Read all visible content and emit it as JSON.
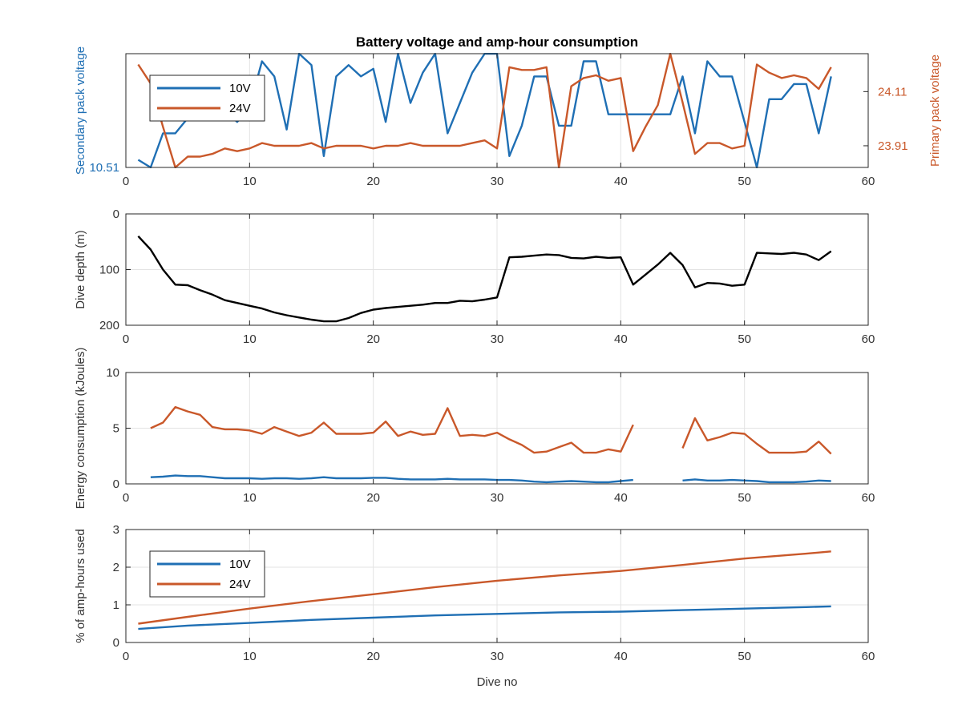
{
  "title": "Battery voltage and amp-hour consumption",
  "colors": {
    "blue": "#1f6fb4",
    "orange": "#c9582a",
    "black": "#000000",
    "grid": "#e3e3e3"
  },
  "chart_data": [
    {
      "type": "line",
      "title": "Battery voltage and amp-hour consumption",
      "xlabel": "",
      "ylabel_left": "Secondary pack voltage",
      "ylabel_right": "Primary pack voltage",
      "xlim": [
        0,
        60
      ],
      "xticks": [
        0,
        10,
        20,
        30,
        40,
        50,
        60
      ],
      "ylim_left": [
        10.51,
        10.54
      ],
      "yticks_left": [
        10.51
      ],
      "ylim_right": [
        23.83,
        24.25
      ],
      "yticks_right": [
        23.91,
        24.11
      ],
      "grid": true,
      "legend": {
        "placement": "top-left",
        "entries": [
          "10V",
          "24V"
        ]
      },
      "series": [
        {
          "name": "10V",
          "axis": "left",
          "color": "#1f6fb4",
          "x": [
            1,
            2,
            3,
            4,
            5,
            6,
            7,
            8,
            9,
            10,
            11,
            12,
            13,
            14,
            15,
            16,
            17,
            18,
            19,
            20,
            21,
            22,
            23,
            24,
            25,
            26,
            27,
            28,
            29,
            30,
            31,
            32,
            33,
            34,
            35,
            36,
            37,
            38,
            39,
            40,
            41,
            42,
            43,
            44,
            45,
            46,
            47,
            48,
            49,
            50,
            51,
            52,
            53,
            54,
            55,
            56,
            57
          ],
          "y": [
            10.512,
            10.51,
            10.519,
            10.519,
            10.523,
            10.524,
            10.524,
            10.525,
            10.522,
            10.526,
            10.538,
            10.534,
            10.52,
            10.54,
            10.537,
            10.513,
            10.534,
            10.537,
            10.534,
            10.536,
            10.522,
            10.54,
            10.527,
            10.535,
            10.54,
            10.519,
            10.527,
            10.535,
            10.54,
            10.54,
            10.513,
            10.521,
            10.534,
            10.534,
            10.521,
            10.521,
            10.538,
            10.538,
            10.524,
            10.524,
            10.524,
            10.524,
            10.524,
            10.524,
            10.534,
            10.519,
            10.538,
            10.534,
            10.534,
            10.522,
            10.51,
            10.528,
            10.528,
            10.532,
            10.532,
            10.519,
            10.534
          ]
        },
        {
          "name": "24V",
          "axis": "right",
          "color": "#c9582a",
          "x": [
            1,
            2,
            3,
            4,
            5,
            6,
            7,
            8,
            9,
            10,
            11,
            12,
            13,
            14,
            15,
            16,
            17,
            18,
            19,
            20,
            21,
            22,
            23,
            24,
            25,
            26,
            27,
            28,
            29,
            30,
            31,
            32,
            33,
            34,
            35,
            36,
            37,
            38,
            39,
            40,
            41,
            42,
            43,
            44,
            45,
            46,
            47,
            48,
            49,
            50,
            51,
            52,
            53,
            54,
            55,
            56,
            57
          ],
          "y": [
            24.21,
            24.14,
            23.98,
            23.83,
            23.87,
            23.87,
            23.88,
            23.9,
            23.89,
            23.9,
            23.92,
            23.91,
            23.91,
            23.91,
            23.92,
            23.9,
            23.91,
            23.91,
            23.91,
            23.9,
            23.91,
            23.91,
            23.92,
            23.91,
            23.91,
            23.91,
            23.91,
            23.92,
            23.93,
            23.9,
            24.2,
            24.19,
            24.19,
            24.2,
            23.83,
            24.13,
            24.16,
            24.17,
            24.15,
            24.16,
            23.89,
            23.98,
            24.06,
            24.25,
            24.07,
            23.88,
            23.92,
            23.92,
            23.9,
            23.91,
            24.21,
            24.18,
            24.16,
            24.17,
            24.16,
            24.12,
            24.2
          ]
        }
      ]
    },
    {
      "type": "line",
      "title": "",
      "xlabel": "",
      "ylabel": "Dive depth (m)",
      "xlim": [
        0,
        60
      ],
      "xticks": [
        0,
        10,
        20,
        30,
        40,
        50,
        60
      ],
      "ylim": [
        0,
        200
      ],
      "y_reversed": true,
      "yticks": [
        0,
        100,
        200
      ],
      "ytick_labels": [
        "0",
        "100",
        "200"
      ],
      "grid": true,
      "series": [
        {
          "color": "#000000",
          "x": [
            1,
            2,
            3,
            4,
            5,
            6,
            7,
            8,
            9,
            10,
            11,
            12,
            13,
            14,
            15,
            16,
            17,
            18,
            19,
            20,
            21,
            22,
            23,
            24,
            25,
            26,
            27,
            28,
            29,
            30,
            31,
            32,
            33,
            34,
            35,
            36,
            37,
            38,
            39,
            40,
            41,
            42,
            43,
            44,
            45,
            46,
            47,
            48,
            49,
            50,
            51,
            52,
            53,
            54,
            55,
            56,
            57
          ],
          "y": [
            40,
            64,
            100,
            127,
            128,
            137,
            145,
            155,
            160,
            165,
            170,
            177,
            182,
            186,
            190,
            193,
            193,
            187,
            178,
            172,
            169,
            167,
            165,
            163,
            160,
            160,
            156,
            157,
            154,
            150,
            78,
            77,
            75,
            73,
            74,
            79,
            80,
            77,
            79,
            78,
            127,
            109,
            91,
            70,
            92,
            132,
            124,
            125,
            129,
            127,
            70,
            71,
            72,
            70,
            73,
            83,
            67
          ]
        }
      ]
    },
    {
      "type": "line",
      "title": "",
      "xlabel": "",
      "ylabel": "Energy consumption (kJoules)",
      "xlim": [
        0,
        60
      ],
      "xticks": [
        0,
        10,
        20,
        30,
        40,
        50,
        60
      ],
      "ylim": [
        0,
        10
      ],
      "yticks": [
        0,
        5,
        10
      ],
      "grid": true,
      "series": [
        {
          "color": "#1f6fb4",
          "x": [
            2,
            3,
            4,
            5,
            6,
            7,
            8,
            9,
            10,
            11,
            12,
            13,
            14,
            15,
            16,
            17,
            18,
            19,
            20,
            21,
            22,
            23,
            24,
            25,
            26,
            27,
            28,
            29,
            30,
            31,
            32,
            33,
            34,
            35,
            36,
            37,
            38,
            39,
            40,
            41,
            null,
            45,
            46,
            47,
            48,
            49,
            50,
            51,
            52,
            53,
            54,
            55,
            56,
            57
          ],
          "y": [
            0.6,
            0.65,
            0.75,
            0.7,
            0.7,
            0.6,
            0.5,
            0.5,
            0.5,
            0.45,
            0.5,
            0.5,
            0.45,
            0.5,
            0.6,
            0.5,
            0.5,
            0.5,
            0.55,
            0.55,
            0.45,
            0.4,
            0.4,
            0.4,
            0.45,
            0.4,
            0.4,
            0.4,
            0.35,
            0.35,
            0.3,
            0.2,
            0.15,
            0.2,
            0.25,
            0.2,
            0.15,
            0.15,
            0.25,
            0.35,
            null,
            0.3,
            0.4,
            0.3,
            0.3,
            0.35,
            0.3,
            0.25,
            0.15,
            0.15,
            0.15,
            0.2,
            0.3,
            0.25
          ]
        },
        {
          "color": "#c9582a",
          "x": [
            2,
            3,
            4,
            5,
            6,
            7,
            8,
            9,
            10,
            11,
            12,
            13,
            14,
            15,
            16,
            17,
            18,
            19,
            20,
            21,
            22,
            23,
            24,
            25,
            26,
            27,
            28,
            29,
            30,
            31,
            32,
            33,
            34,
            35,
            36,
            37,
            38,
            39,
            40,
            41,
            null,
            45,
            46,
            47,
            48,
            49,
            50,
            51,
            52,
            53,
            54,
            55,
            56,
            57
          ],
          "y": [
            5.0,
            5.5,
            6.9,
            6.5,
            6.2,
            5.1,
            4.9,
            4.9,
            4.8,
            4.5,
            5.1,
            4.7,
            4.3,
            4.6,
            5.5,
            4.5,
            4.5,
            4.5,
            4.6,
            5.6,
            4.3,
            4.7,
            4.4,
            4.5,
            6.8,
            4.3,
            4.4,
            4.3,
            4.6,
            4.0,
            3.5,
            2.8,
            2.9,
            3.3,
            3.7,
            2.8,
            2.8,
            3.1,
            2.9,
            5.3,
            null,
            3.2,
            5.9,
            3.9,
            4.2,
            4.6,
            4.5,
            3.6,
            2.8,
            2.8,
            2.8,
            2.9,
            3.8,
            2.7
          ]
        }
      ]
    },
    {
      "type": "line",
      "title": "",
      "xlabel": "Dive no",
      "ylabel": "% of amp-hours used",
      "xlim": [
        0,
        60
      ],
      "xticks": [
        0,
        10,
        20,
        30,
        40,
        50,
        60
      ],
      "ylim": [
        0,
        3
      ],
      "yticks": [
        0,
        1,
        2,
        3
      ],
      "grid": true,
      "legend": {
        "placement": "top-left",
        "entries": [
          "10V",
          "24V"
        ]
      },
      "series": [
        {
          "name": "10V",
          "color": "#1f6fb4",
          "x": [
            1,
            5,
            10,
            15,
            20,
            25,
            30,
            35,
            40,
            45,
            50,
            55,
            57
          ],
          "y": [
            0.36,
            0.45,
            0.52,
            0.6,
            0.66,
            0.72,
            0.76,
            0.8,
            0.82,
            0.86,
            0.9,
            0.94,
            0.96
          ]
        },
        {
          "name": "24V",
          "color": "#c9582a",
          "x": [
            1,
            5,
            10,
            15,
            20,
            25,
            30,
            35,
            40,
            45,
            50,
            55,
            57
          ],
          "y": [
            0.5,
            0.68,
            0.9,
            1.1,
            1.28,
            1.47,
            1.64,
            1.78,
            1.9,
            2.06,
            2.23,
            2.36,
            2.42
          ]
        }
      ]
    }
  ]
}
